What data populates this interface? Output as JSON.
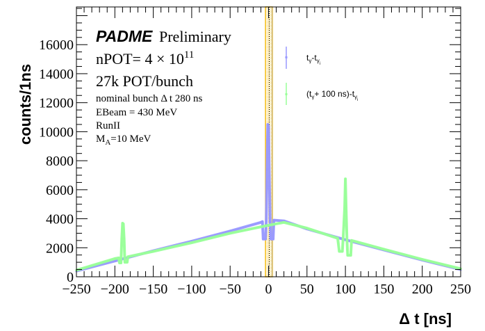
{
  "chart_data": {
    "type": "line",
    "xlabel": "Δ t [ns]",
    "ylabel": "counts/1ns",
    "xlim": [
      -250,
      250
    ],
    "ylim": [
      0,
      18600
    ],
    "x_ticks": [
      -250,
      -200,
      -150,
      -100,
      -50,
      0,
      50,
      100,
      150,
      200,
      250
    ],
    "y_ticks": [
      0,
      2000,
      4000,
      6000,
      8000,
      10000,
      12000,
      14000,
      16000
    ],
    "grid": false,
    "legend_placement": "top-right",
    "highlight_band": {
      "x_range": [
        -4,
        5
      ],
      "color": "#f5b800"
    },
    "series": [
      {
        "name": "t_γ-t_γi",
        "color": "#9999ff",
        "points": [
          [
            -250,
            400
          ],
          [
            -200,
            1090
          ],
          [
            -150,
            1790
          ],
          [
            -100,
            2450
          ],
          [
            -50,
            3150
          ],
          [
            -10,
            3750
          ],
          [
            -8,
            3800
          ],
          [
            -7,
            2600
          ],
          [
            -4,
            2600
          ],
          [
            -3,
            3800
          ],
          [
            -2,
            7400
          ],
          [
            -1,
            10500
          ],
          [
            0,
            10400
          ],
          [
            1,
            6900
          ],
          [
            2,
            3800
          ],
          [
            3,
            2600
          ],
          [
            6,
            2600
          ],
          [
            7,
            3900
          ],
          [
            20,
            3850
          ],
          [
            50,
            3300
          ],
          [
            100,
            2550
          ],
          [
            150,
            1850
          ],
          [
            200,
            1150
          ],
          [
            250,
            500
          ]
        ]
      },
      {
        "name": "(t_γ+ 100 ns)-t_γi",
        "color": "#99ff99",
        "points": [
          [
            -250,
            450
          ],
          [
            -200,
            1250
          ],
          [
            -195,
            1300
          ],
          [
            -194,
            960
          ],
          [
            -192,
            960
          ],
          [
            -191,
            2630
          ],
          [
            -190,
            3690
          ],
          [
            -189,
            3650
          ],
          [
            -188,
            2630
          ],
          [
            -187,
            1000
          ],
          [
            -184,
            1000
          ],
          [
            -183,
            1380
          ],
          [
            -150,
            1750
          ],
          [
            -100,
            2350
          ],
          [
            -50,
            3000
          ],
          [
            0,
            3550
          ],
          [
            20,
            3750
          ],
          [
            50,
            3350
          ],
          [
            90,
            2650
          ],
          [
            92,
            1750
          ],
          [
            96,
            1750
          ],
          [
            97,
            2600
          ],
          [
            99,
            4700
          ],
          [
            100,
            6750
          ],
          [
            101,
            4500
          ],
          [
            102,
            2600
          ],
          [
            103,
            1480
          ],
          [
            107,
            1480
          ],
          [
            108,
            2500
          ],
          [
            150,
            1900
          ],
          [
            200,
            1200
          ],
          [
            250,
            550
          ]
        ]
      }
    ]
  },
  "annotations": {
    "experiment": "PADME",
    "status": "Preliminary",
    "npot_prefix": "nPOT= 4 × 10",
    "npot_exp": "11",
    "pot_bunch": "27k POT/bunch",
    "bunch_dt": "nominal bunch Δ t 280 ns",
    "ebeam": "EBeam = 430 MeV",
    "run": "RunII",
    "ma_prefix": "M",
    "ma_sub": "A",
    "ma_suffix": "=10 MeV"
  },
  "legend": {
    "entry1": {
      "t": "t",
      "g": "γ",
      "dash": "-t",
      "gi": "γ",
      "i": "i"
    },
    "entry2": {
      "open": "(t",
      "g": "γ",
      "mid": "+ 100 ns)-t",
      "gi": "γ",
      "i": "i"
    }
  }
}
